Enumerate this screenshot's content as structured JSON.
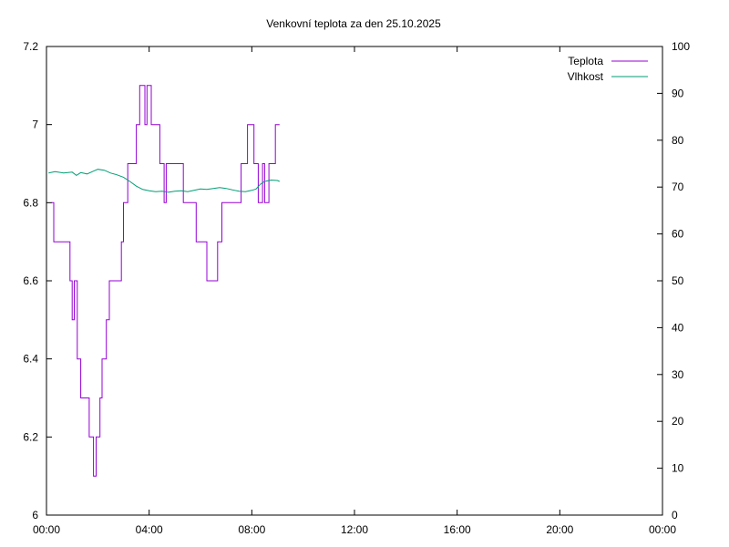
{
  "chart_data": {
    "type": "line",
    "title": "Venkovní teplota za den 25.10.2025",
    "xlabel": "",
    "ylabel": "",
    "y2label": "",
    "x_ticks": [
      "00:00",
      "04:00",
      "08:00",
      "12:00",
      "16:00",
      "20:00",
      "00:00"
    ],
    "xlim_hours": [
      0,
      24
    ],
    "ylim": [
      6,
      7.2
    ],
    "y_ticks": [
      "6",
      "6.2",
      "6.4",
      "6.6",
      "6.8",
      "7",
      "7.2"
    ],
    "y2lim": [
      0,
      100
    ],
    "y2_ticks": [
      "0",
      "10",
      "20",
      "30",
      "40",
      "50",
      "60",
      "70",
      "80",
      "90",
      "100"
    ],
    "grid": false,
    "legend_placement": "top-right",
    "series": [
      {
        "name": "Teplota",
        "axis": "left",
        "color": "#9400d3",
        "step": true,
        "points": [
          [
            "00:12",
            6.8
          ],
          [
            "00:17",
            6.7
          ],
          [
            "00:55",
            6.6
          ],
          [
            "01:00",
            6.5
          ],
          [
            "01:05",
            6.6
          ],
          [
            "01:12",
            6.4
          ],
          [
            "01:20",
            6.3
          ],
          [
            "01:40",
            6.2
          ],
          [
            "01:50",
            6.1
          ],
          [
            "01:56",
            6.2
          ],
          [
            "02:05",
            6.3
          ],
          [
            "02:10",
            6.4
          ],
          [
            "02:20",
            6.5
          ],
          [
            "02:27",
            6.6
          ],
          [
            "02:55",
            6.7
          ],
          [
            "03:00",
            6.8
          ],
          [
            "03:10",
            6.9
          ],
          [
            "03:30",
            7.0
          ],
          [
            "03:38",
            7.1
          ],
          [
            "03:50",
            7.0
          ],
          [
            "03:55",
            7.1
          ],
          [
            "04:05",
            7.0
          ],
          [
            "04:25",
            6.9
          ],
          [
            "04:35",
            6.8
          ],
          [
            "04:40",
            6.9
          ],
          [
            "05:20",
            6.8
          ],
          [
            "05:50",
            6.7
          ],
          [
            "06:15",
            6.6
          ],
          [
            "06:40",
            6.7
          ],
          [
            "06:50",
            6.8
          ],
          [
            "07:35",
            6.9
          ],
          [
            "07:50",
            7.0
          ],
          [
            "08:05",
            6.9
          ],
          [
            "08:15",
            6.8
          ],
          [
            "08:25",
            6.9
          ],
          [
            "08:30",
            6.8
          ],
          [
            "08:40",
            6.9
          ],
          [
            "08:55",
            7.0
          ],
          [
            "09:05",
            7.0
          ]
        ]
      },
      {
        "name": "Vlhkost",
        "axis": "right",
        "color": "#009e73",
        "step": false,
        "points": [
          [
            "00:05",
            73
          ],
          [
            "00:20",
            73.3
          ],
          [
            "00:40",
            73
          ],
          [
            "01:00",
            73.2
          ],
          [
            "01:10",
            72.5
          ],
          [
            "01:20",
            73.1
          ],
          [
            "01:35",
            72.8
          ],
          [
            "01:50",
            73.4
          ],
          [
            "02:00",
            73.8
          ],
          [
            "02:15",
            73.6
          ],
          [
            "02:30",
            73
          ],
          [
            "02:45",
            72.6
          ],
          [
            "03:00",
            72.1
          ],
          [
            "03:15",
            71.2
          ],
          [
            "03:30",
            70.2
          ],
          [
            "03:45",
            69.5
          ],
          [
            "04:00",
            69.2
          ],
          [
            "04:15",
            69
          ],
          [
            "04:30",
            69.1
          ],
          [
            "04:45",
            68.9
          ],
          [
            "05:00",
            69.1
          ],
          [
            "05:15",
            69.2
          ],
          [
            "05:30",
            69
          ],
          [
            "05:45",
            69.3
          ],
          [
            "06:00",
            69.6
          ],
          [
            "06:15",
            69.5
          ],
          [
            "06:30",
            69.7
          ],
          [
            "06:45",
            69.9
          ],
          [
            "07:00",
            69.7
          ],
          [
            "07:15",
            69.4
          ],
          [
            "07:30",
            69.1
          ],
          [
            "07:45",
            69
          ],
          [
            "08:00",
            69.3
          ],
          [
            "08:10",
            69.6
          ],
          [
            "08:20",
            70.6
          ],
          [
            "08:30",
            71.2
          ],
          [
            "08:45",
            71.5
          ],
          [
            "09:00",
            71.4
          ],
          [
            "09:05",
            71.2
          ]
        ]
      }
    ]
  }
}
